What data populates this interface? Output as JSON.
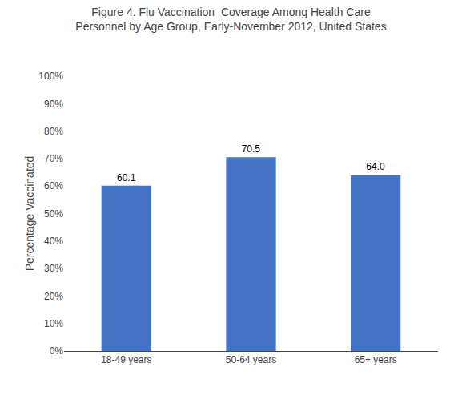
{
  "chart_data": {
    "type": "bar",
    "title": "Figure 4. Flu Vaccination  Coverage Among Health Care\nPersonnel by Age Group, Early-November 2012, United States",
    "ylabel": "Percentage Vaccinated",
    "categories": [
      "18-49 years",
      "50-64 years",
      "65+ years"
    ],
    "values": [
      60.1,
      70.5,
      64.0
    ],
    "value_labels": [
      "60.1",
      "70.5",
      "64.0"
    ],
    "data_labels": true,
    "color": "#4472C4",
    "ylim": [
      0,
      100
    ],
    "yticks": [
      {
        "value": 0,
        "label": "0%"
      },
      {
        "value": 10,
        "label": "10%"
      },
      {
        "value": 20,
        "label": "20%"
      },
      {
        "value": 30,
        "label": "30%"
      },
      {
        "value": 40,
        "label": "40%"
      },
      {
        "value": 50,
        "label": "50%"
      },
      {
        "value": 60,
        "label": "60%"
      },
      {
        "value": 70,
        "label": "70%"
      },
      {
        "value": 80,
        "label": "80%"
      },
      {
        "value": 90,
        "label": "90%"
      },
      {
        "value": 100,
        "label": "100%"
      }
    ],
    "grid": false
  }
}
